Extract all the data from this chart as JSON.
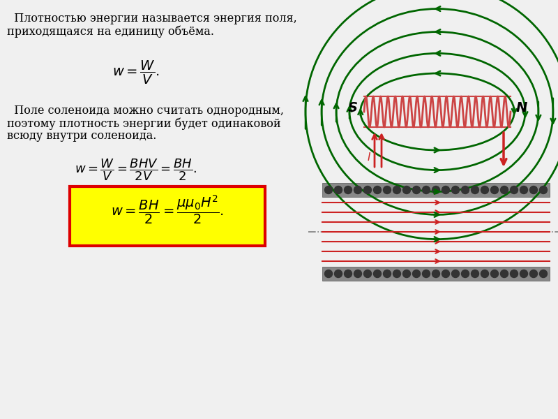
{
  "bg_color": "#f0f0f0",
  "text1_line1": "  Плотностью энергии называется энергия поля,",
  "text1_line2": "приходящаяся на единицу объёма.",
  "text2_line1": "  Поле соленоида можно считать однородным,",
  "text2_line2": "поэтому плотность энергии будет одинаковой",
  "text2_line3": "всюду внутри соленоида.",
  "yellow_color": "#ffff00",
  "red_border": "#dd0000",
  "green_color": "#006600",
  "red_line_color": "#cc2222",
  "solenoid_color": "#cc4444",
  "dot_color": "#333333",
  "gray_strip": "#888888"
}
